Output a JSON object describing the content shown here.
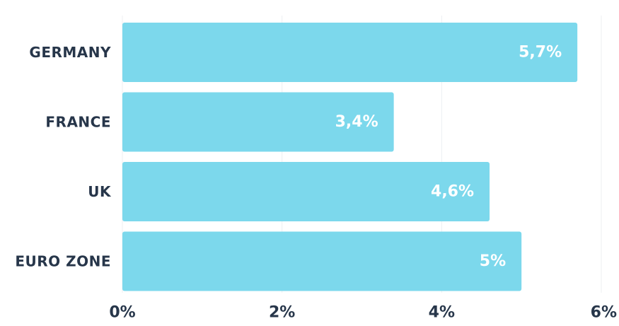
{
  "chart_data": {
    "type": "bar",
    "orientation": "horizontal",
    "categories": [
      "GERMANY",
      "FRANCE",
      "UK",
      "EURO ZONE"
    ],
    "values": [
      5.7,
      3.4,
      4.6,
      5
    ],
    "value_labels": [
      "5,7%",
      "3,4%",
      "4,6%",
      "5%"
    ],
    "x_ticks": [
      0,
      2,
      4,
      6
    ],
    "x_tick_labels": [
      "0%",
      "2%",
      "4%",
      "6%"
    ],
    "xlim": [
      0,
      6
    ],
    "grid": true,
    "title": "",
    "xlabel": "",
    "ylabel": ""
  },
  "colors": {
    "bar": "#7cd8ec",
    "category_text": "#27364a",
    "value_text": "#ffffff",
    "tick_text": "#27364a",
    "grid": "#eceff2",
    "background": "#ffffff"
  }
}
